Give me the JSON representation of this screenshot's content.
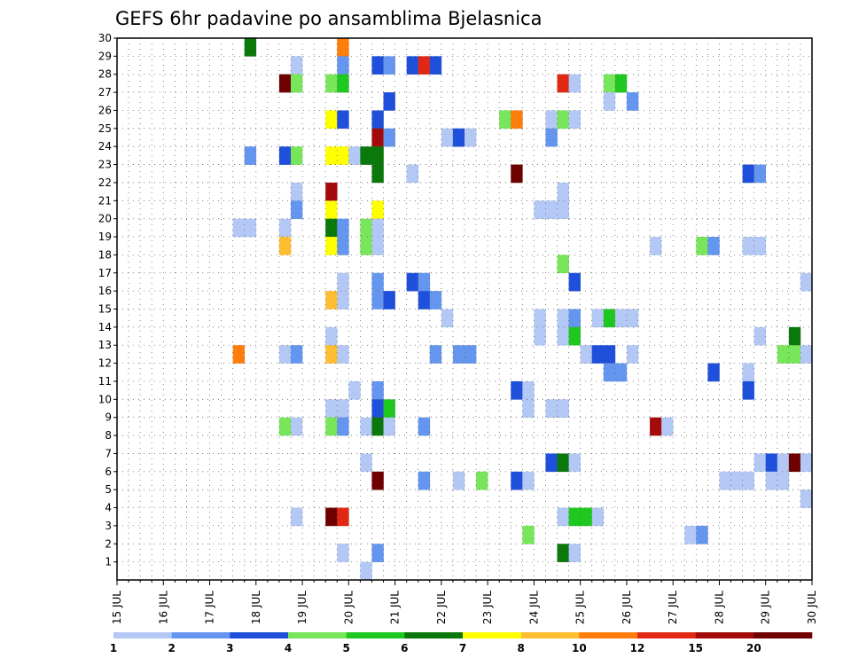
{
  "chart_data": {
    "type": "heatmap",
    "title": "GEFS 6hr padavine po ansamblima Bjelasnica",
    "x_tick_labels": [
      "15 JUL",
      "16 JUL",
      "17 JUL",
      "18 JUL",
      "19 JUL",
      "20 JUL",
      "21 JUL",
      "22 JUL",
      "23 JUL",
      "24 JUL",
      "25 JUL",
      "26 JUL",
      "27 JUL",
      "28 JUL",
      "29 JUL",
      "30 JUL"
    ],
    "y_tick_labels": [
      "1",
      "2",
      "3",
      "4",
      "5",
      "6",
      "7",
      "8",
      "9",
      "10",
      "11",
      "12",
      "13",
      "14",
      "15",
      "16",
      "17",
      "18",
      "19",
      "20",
      "21",
      "22",
      "23",
      "24",
      "25",
      "26",
      "27",
      "28",
      "29",
      "30"
    ],
    "xlim": [
      0,
      60
    ],
    "ylim": [
      0,
      30
    ],
    "grid": true,
    "colorbar": {
      "labels": [
        "1",
        "2",
        "3",
        "4",
        "5",
        "6",
        "7",
        "8",
        "10",
        "12",
        "15",
        "20"
      ],
      "colors": [
        "#b4c8f5",
        "#6496f0",
        "#1e50dc",
        "#78e65a",
        "#1ec81e",
        "#0a780a",
        "#ffff00",
        "#ffbe32",
        "#ff7d0a",
        "#e12814",
        "#a50a0a",
        "#6e0000"
      ]
    },
    "cells_note": "each cell: [six-hour step from 15 JUL 00Z, ensemble member, color class index into colorbar.colors]",
    "cells": [
      [
        11,
        30,
        5
      ],
      [
        19,
        30,
        8
      ],
      [
        15,
        29,
        0
      ],
      [
        19,
        29,
        1
      ],
      [
        22,
        29,
        2
      ],
      [
        23,
        29,
        1
      ],
      [
        25,
        29,
        2
      ],
      [
        26,
        29,
        9
      ],
      [
        27,
        29,
        2
      ],
      [
        14,
        28,
        11
      ],
      [
        15,
        28,
        3
      ],
      [
        18,
        28,
        3
      ],
      [
        19,
        28,
        4
      ],
      [
        38,
        28,
        9
      ],
      [
        39,
        28,
        0
      ],
      [
        42,
        28,
        3
      ],
      [
        43,
        28,
        4
      ],
      [
        23,
        27,
        2
      ],
      [
        42,
        27,
        0
      ],
      [
        44,
        27,
        1
      ],
      [
        18,
        26,
        6
      ],
      [
        19,
        26,
        2
      ],
      [
        22,
        26,
        2
      ],
      [
        33,
        26,
        3
      ],
      [
        34,
        26,
        8
      ],
      [
        37,
        26,
        0
      ],
      [
        38,
        26,
        3
      ],
      [
        39,
        26,
        0
      ],
      [
        22,
        25,
        10
      ],
      [
        23,
        25,
        1
      ],
      [
        28,
        25,
        0
      ],
      [
        29,
        25,
        2
      ],
      [
        30,
        25,
        0
      ],
      [
        37,
        25,
        1
      ],
      [
        11,
        24,
        1
      ],
      [
        14,
        24,
        2
      ],
      [
        15,
        24,
        3
      ],
      [
        18,
        24,
        6
      ],
      [
        19,
        24,
        6
      ],
      [
        20,
        24,
        0
      ],
      [
        21,
        24,
        5
      ],
      [
        22,
        24,
        5
      ],
      [
        22,
        23,
        5
      ],
      [
        25,
        23,
        0
      ],
      [
        34,
        23,
        11
      ],
      [
        54,
        23,
        2
      ],
      [
        55,
        23,
        1
      ],
      [
        15,
        22,
        0
      ],
      [
        18,
        22,
        10
      ],
      [
        38,
        22,
        0
      ],
      [
        15,
        21,
        1
      ],
      [
        18,
        21,
        6
      ],
      [
        22,
        21,
        6
      ],
      [
        36,
        21,
        0
      ],
      [
        37,
        21,
        0
      ],
      [
        38,
        21,
        0
      ],
      [
        10,
        20,
        0
      ],
      [
        11,
        20,
        0
      ],
      [
        14,
        20,
        0
      ],
      [
        18,
        20,
        5
      ],
      [
        19,
        20,
        1
      ],
      [
        21,
        20,
        3
      ],
      [
        22,
        20,
        0
      ],
      [
        14,
        19,
        7
      ],
      [
        18,
        19,
        6
      ],
      [
        19,
        19,
        1
      ],
      [
        21,
        19,
        3
      ],
      [
        22,
        19,
        0
      ],
      [
        46,
        19,
        0
      ],
      [
        50,
        19,
        3
      ],
      [
        51,
        19,
        1
      ],
      [
        54,
        19,
        0
      ],
      [
        55,
        19,
        0
      ],
      [
        38,
        18,
        3
      ],
      [
        19,
        17,
        0
      ],
      [
        22,
        17,
        1
      ],
      [
        25,
        17,
        2
      ],
      [
        26,
        17,
        1
      ],
      [
        39,
        17,
        2
      ],
      [
        59,
        17,
        0
      ],
      [
        18,
        16,
        7
      ],
      [
        19,
        16,
        0
      ],
      [
        22,
        16,
        1
      ],
      [
        23,
        16,
        2
      ],
      [
        26,
        16,
        2
      ],
      [
        27,
        16,
        1
      ],
      [
        28,
        15,
        0
      ],
      [
        36,
        15,
        0
      ],
      [
        38,
        15,
        0
      ],
      [
        39,
        15,
        1
      ],
      [
        41,
        15,
        0
      ],
      [
        42,
        15,
        4
      ],
      [
        43,
        15,
        0
      ],
      [
        44,
        15,
        0
      ],
      [
        18,
        14,
        0
      ],
      [
        36,
        14,
        0
      ],
      [
        38,
        14,
        0
      ],
      [
        39,
        14,
        4
      ],
      [
        55,
        14,
        0
      ],
      [
        58,
        14,
        5
      ],
      [
        10,
        13,
        8
      ],
      [
        14,
        13,
        0
      ],
      [
        15,
        13,
        1
      ],
      [
        18,
        13,
        7
      ],
      [
        19,
        13,
        0
      ],
      [
        27,
        13,
        1
      ],
      [
        29,
        13,
        1
      ],
      [
        30,
        13,
        1
      ],
      [
        40,
        13,
        0
      ],
      [
        41,
        13,
        2
      ],
      [
        42,
        13,
        2
      ],
      [
        44,
        13,
        0
      ],
      [
        57,
        13,
        3
      ],
      [
        58,
        13,
        3
      ],
      [
        59,
        13,
        0
      ],
      [
        42,
        12,
        1
      ],
      [
        43,
        12,
        1
      ],
      [
        51,
        12,
        2
      ],
      [
        54,
        12,
        0
      ],
      [
        20,
        11,
        0
      ],
      [
        22,
        11,
        1
      ],
      [
        34,
        11,
        2
      ],
      [
        35,
        11,
        0
      ],
      [
        54,
        11,
        2
      ],
      [
        18,
        10,
        0
      ],
      [
        19,
        10,
        0
      ],
      [
        22,
        10,
        2
      ],
      [
        23,
        10,
        4
      ],
      [
        35,
        10,
        0
      ],
      [
        37,
        10,
        0
      ],
      [
        38,
        10,
        0
      ],
      [
        14,
        9,
        3
      ],
      [
        15,
        9,
        0
      ],
      [
        18,
        9,
        3
      ],
      [
        19,
        9,
        1
      ],
      [
        21,
        9,
        0
      ],
      [
        22,
        9,
        5
      ],
      [
        23,
        9,
        0
      ],
      [
        26,
        9,
        1
      ],
      [
        46,
        9,
        10
      ],
      [
        47,
        9,
        0
      ],
      [
        21,
        7,
        0
      ],
      [
        37,
        7,
        2
      ],
      [
        38,
        7,
        5
      ],
      [
        39,
        7,
        0
      ],
      [
        55,
        7,
        0
      ],
      [
        56,
        7,
        2
      ],
      [
        57,
        7,
        0
      ],
      [
        58,
        7,
        11
      ],
      [
        59,
        7,
        0
      ],
      [
        22,
        6,
        11
      ],
      [
        26,
        6,
        1
      ],
      [
        29,
        6,
        0
      ],
      [
        31,
        6,
        3
      ],
      [
        34,
        6,
        2
      ],
      [
        35,
        6,
        0
      ],
      [
        52,
        6,
        0
      ],
      [
        53,
        6,
        0
      ],
      [
        54,
        6,
        0
      ],
      [
        56,
        6,
        0
      ],
      [
        57,
        6,
        0
      ],
      [
        59,
        5,
        0
      ],
      [
        15,
        4,
        0
      ],
      [
        18,
        4,
        11
      ],
      [
        19,
        4,
        9
      ],
      [
        38,
        4,
        0
      ],
      [
        39,
        4,
        4
      ],
      [
        40,
        4,
        4
      ],
      [
        41,
        4,
        0
      ],
      [
        35,
        3,
        3
      ],
      [
        49,
        3,
        0
      ],
      [
        50,
        3,
        1
      ],
      [
        19,
        2,
        0
      ],
      [
        22,
        2,
        1
      ],
      [
        38,
        2,
        5
      ],
      [
        39,
        2,
        0
      ],
      [
        21,
        1,
        0
      ]
    ]
  }
}
